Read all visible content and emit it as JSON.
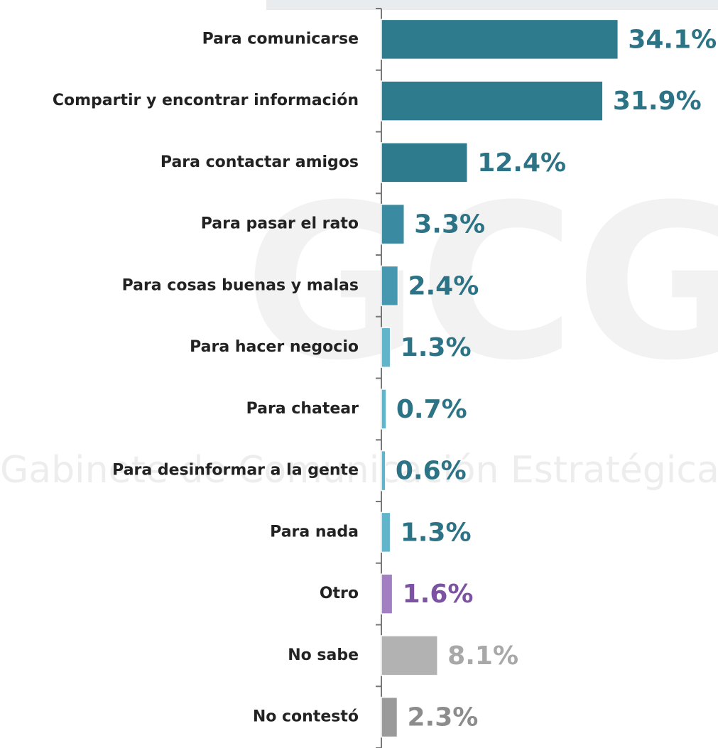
{
  "chart_data": {
    "type": "hbar",
    "watermark": [
      "GCG",
      "Gabinete de Comunicación Estratégica"
    ],
    "categories": [
      "Para comunicarse",
      "Compartir y encontrar información",
      "Para contactar amigos",
      "Para pasar el rato",
      "Para cosas buenas y malas",
      "Para hacer negocio",
      "Para chatear",
      "Para desinformar a la gente",
      "Para nada",
      "Otro",
      "No sabe",
      "No contestó"
    ],
    "values": [
      34.1,
      31.9,
      12.4,
      3.3,
      2.4,
      1.3,
      0.7,
      0.6,
      1.3,
      1.6,
      8.1,
      2.3
    ],
    "value_labels": [
      "34.1%",
      "31.9%",
      "12.4%",
      "3.3%",
      "2.4%",
      "1.3%",
      "0.7%",
      "0.6%",
      "1.3%",
      "1.6%",
      "8.1%",
      "2.3%"
    ],
    "colors": [
      "#2f7b8e",
      "#2f7b8e",
      "#2f7b8e",
      "#3a8ba1",
      "#4598b0",
      "#62b4cb",
      "#62b4cb",
      "#62b4cb",
      "#62b4cb",
      "#a27fc0",
      "#b2b2b2",
      "#9a9a9a"
    ],
    "label_colors": [
      "#2d7386",
      "#2d7386",
      "#2d7386",
      "#2d7386",
      "#2d7386",
      "#2d7386",
      "#2d7386",
      "#2d7386",
      "#2d7386",
      "#7b53a2",
      "#a8a8a8",
      "#8c8c8c"
    ],
    "xlim": [
      0,
      40
    ]
  }
}
